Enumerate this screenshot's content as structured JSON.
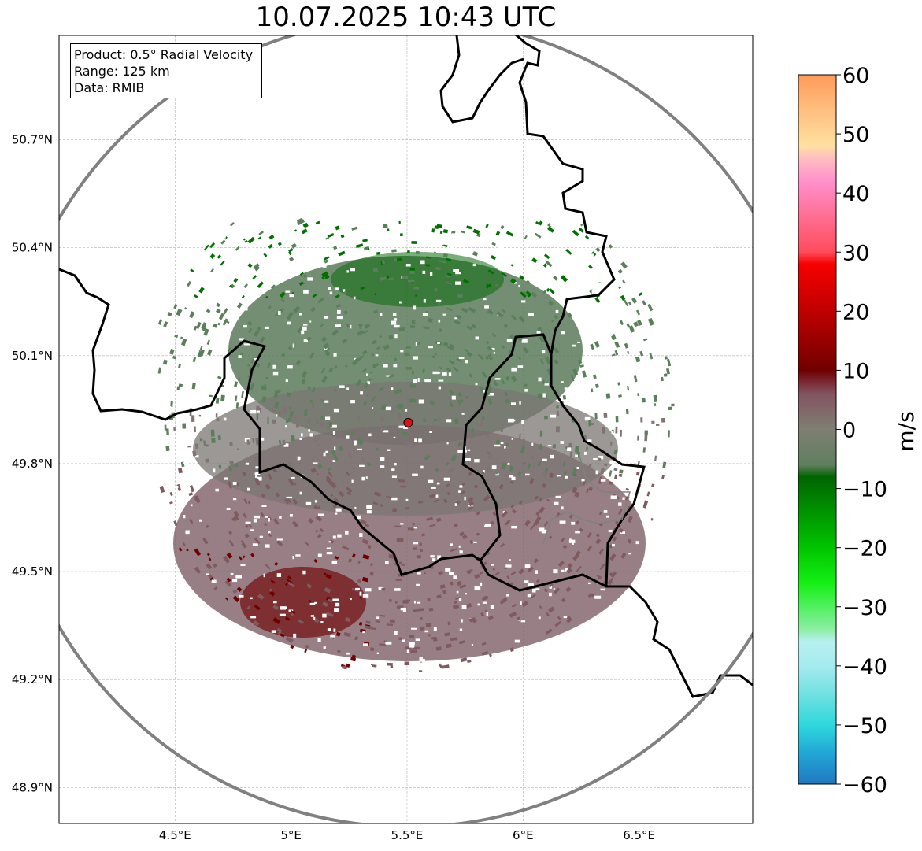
{
  "title": "10.07.2025 10:43 UTC",
  "info_box": {
    "product": "Product: 0.5° Radial Velocity",
    "range": "Range: 125 km",
    "source": "Data: RMIB"
  },
  "map": {
    "lon_range": [
      4.0,
      6.99
    ],
    "lat_range": [
      48.8,
      50.99
    ],
    "radar_site": {
      "lon": 5.505,
      "lat": 49.914
    },
    "range_ring_km": 125,
    "x_ticks": [
      {
        "value": 4.5,
        "label": "4.5°E"
      },
      {
        "value": 5.0,
        "label": "5°E"
      },
      {
        "value": 5.5,
        "label": "5.5°E"
      },
      {
        "value": 6.0,
        "label": "6°E"
      },
      {
        "value": 6.5,
        "label": "6.5°E"
      }
    ],
    "y_ticks": [
      {
        "value": 50.7,
        "label": "50.7°N"
      },
      {
        "value": 50.4,
        "label": "50.4°N"
      },
      {
        "value": 50.1,
        "label": "50.1°N"
      },
      {
        "value": 49.8,
        "label": "49.8°N"
      },
      {
        "value": 49.5,
        "label": "49.5°N"
      },
      {
        "value": 49.2,
        "label": "49.2°N"
      },
      {
        "value": 48.9,
        "label": "48.9°N"
      }
    ],
    "colors": {
      "grid": "#b0b0b0",
      "border": "#000000",
      "ring": "#808080",
      "site": "#dd1111",
      "approaching_far": "#007000",
      "approaching_near": "#5a7f5a",
      "zero": "#7f7373",
      "receding_near": "#7f5a5f",
      "receding_far": "#700000"
    }
  },
  "colorbar": {
    "label": "m/s",
    "min": -60,
    "max": 60,
    "ticks": [
      {
        "value": 60,
        "label": "60"
      },
      {
        "value": 50,
        "label": "50"
      },
      {
        "value": 40,
        "label": "40"
      },
      {
        "value": 30,
        "label": "30"
      },
      {
        "value": 20,
        "label": "20"
      },
      {
        "value": 10,
        "label": "10"
      },
      {
        "value": 0,
        "label": "0"
      },
      {
        "value": -10,
        "label": "−10"
      },
      {
        "value": -20,
        "label": "−20"
      },
      {
        "value": -30,
        "label": "−30"
      },
      {
        "value": -40,
        "label": "−40"
      },
      {
        "value": -50,
        "label": "−50"
      },
      {
        "value": -60,
        "label": "−60"
      }
    ],
    "stops": [
      {
        "value": -60,
        "color": "#1f78c0"
      },
      {
        "value": -55,
        "color": "#22a4d4"
      },
      {
        "value": -50,
        "color": "#2ed8dc"
      },
      {
        "value": -45,
        "color": "#6fe0e2"
      },
      {
        "value": -40,
        "color": "#a6eaee"
      },
      {
        "value": -36,
        "color": "#b8f0f2"
      },
      {
        "value": -34,
        "color": "#90eea8"
      },
      {
        "value": -30,
        "color": "#50f060"
      },
      {
        "value": -26,
        "color": "#14f014"
      },
      {
        "value": -20,
        "color": "#00c400"
      },
      {
        "value": -14,
        "color": "#009400"
      },
      {
        "value": -8,
        "color": "#006400"
      },
      {
        "value": -6,
        "color": "#5f7f5f"
      },
      {
        "value": 0,
        "color": "#7f7f72"
      },
      {
        "value": 6,
        "color": "#825461"
      },
      {
        "value": 8,
        "color": "#7a2a32"
      },
      {
        "value": 10,
        "color": "#700000"
      },
      {
        "value": 18,
        "color": "#b00000"
      },
      {
        "value": 28,
        "color": "#f70000"
      },
      {
        "value": 30,
        "color": "#ff4c5c"
      },
      {
        "value": 36,
        "color": "#ff6e92"
      },
      {
        "value": 42,
        "color": "#ff90cc"
      },
      {
        "value": 46,
        "color": "#ffc0c0"
      },
      {
        "value": 48,
        "color": "#ffe0a0"
      },
      {
        "value": 54,
        "color": "#ffbf80"
      },
      {
        "value": 60,
        "color": "#ff9a5a"
      }
    ]
  }
}
